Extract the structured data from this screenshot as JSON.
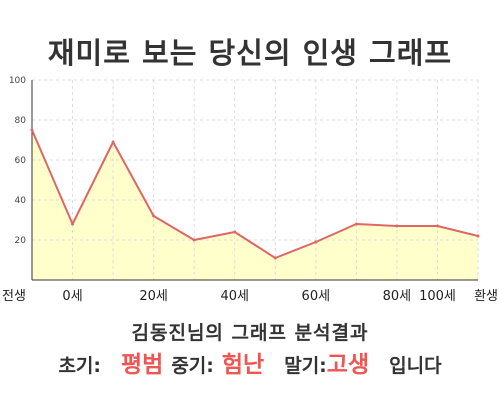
{
  "header": {
    "title": "재미로 보는 당신의 인생 그래프"
  },
  "chart_data": {
    "type": "area",
    "title": "재미로 보는 당신의 인생 그래프",
    "categories": [
      "전생",
      "0세",
      "20세",
      "40세",
      "60세",
      "80세",
      "100세",
      "환생"
    ],
    "points": [
      {
        "x": "전생",
        "y": 75
      },
      {
        "x": "0세",
        "y": 28
      },
      {
        "x": "20세",
        "y": 69
      },
      {
        "x": "30세",
        "y": 32
      },
      {
        "x": "40세",
        "y": 20
      },
      {
        "x": "50세",
        "y": 24
      },
      {
        "x": "60세",
        "y": 11
      },
      {
        "x": "70세",
        "y": 19
      },
      {
        "x": "80세",
        "y": 28
      },
      {
        "x": "90세",
        "y": 27
      },
      {
        "x": "100세",
        "y": 27
      },
      {
        "x": "환생",
        "y": 22
      }
    ],
    "yticks": [
      20,
      40,
      60,
      80,
      100
    ],
    "ylim": [
      0,
      100
    ],
    "grid": true,
    "legend": "none",
    "colors": {
      "line": "#e06666",
      "fill": "#ffffcc",
      "grid": "#dddddd"
    }
  },
  "summary": {
    "subtitle": "김동진님의 그래프 분석결과",
    "early_label": "초기:",
    "early_value": "평범",
    "mid_label": "중기:",
    "mid_value": "험난",
    "late_label": "말기:",
    "late_value": "고생",
    "suffix": "입니다"
  }
}
